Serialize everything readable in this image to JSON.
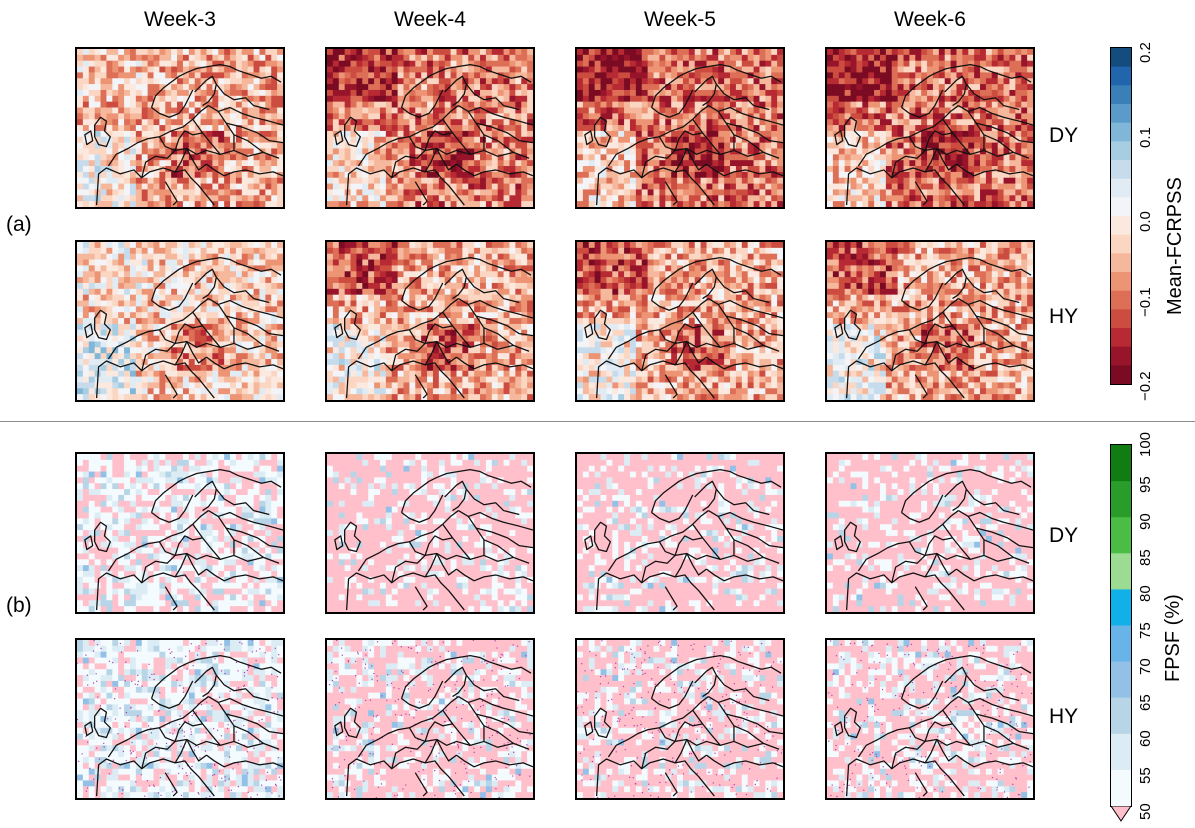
{
  "chart_data": [
    {
      "type": "heatmap",
      "panel": "(a)",
      "columns": [
        "Week-3",
        "Week-4",
        "Week-5",
        "Week-6"
      ],
      "rows": [
        "DY",
        "HY"
      ],
      "colorbar": {
        "label": "Mean-FCRPSS",
        "ticks": [
          "0.2",
          "0.1",
          "0.0",
          "−0.1",
          "−0.2"
        ],
        "range": [
          -0.2,
          0.2
        ],
        "colormap": "RdBu",
        "colors": [
          "#144c7e",
          "#2166ac",
          "#3a7fb8",
          "#5a9bc9",
          "#80b6d7",
          "#a6cde2",
          "#c6dcec",
          "#e1ebf4",
          "#f2f4f7",
          "#fbe9e0",
          "#fbd6c3",
          "#f6b89d",
          "#ec9474",
          "#de6f57",
          "#cc4c40",
          "#b72a33",
          "#97142a",
          "#7a0b22"
        ]
      },
      "mean_skill_grid": [
        [
          -0.06,
          -0.09,
          -0.1,
          -0.1
        ],
        [
          -0.03,
          -0.06,
          -0.06,
          -0.06
        ]
      ]
    },
    {
      "type": "heatmap",
      "panel": "(b)",
      "columns": [
        "Week-3",
        "Week-4",
        "Week-5",
        "Week-6"
      ],
      "rows": [
        "DY",
        "HY"
      ],
      "colorbar": {
        "label": "FPSF (%)",
        "ticks": [
          "100",
          "95",
          "90",
          "85",
          "80",
          "75",
          "70",
          "65",
          "60",
          "55",
          "50"
        ],
        "range": [
          50,
          100
        ],
        "extend": "min",
        "colors": [
          "#f4fbfe",
          "#dcecf4",
          "#b7d5e6",
          "#93c0e6",
          "#68b4e8",
          "#12b0e9",
          "#9bdc92",
          "#4cbd44",
          "#2a9c2a",
          "#117c11",
          "#006400"
        ],
        "under_color": "#ffc0cb"
      },
      "stippling": "HY rows only"
    }
  ]
}
